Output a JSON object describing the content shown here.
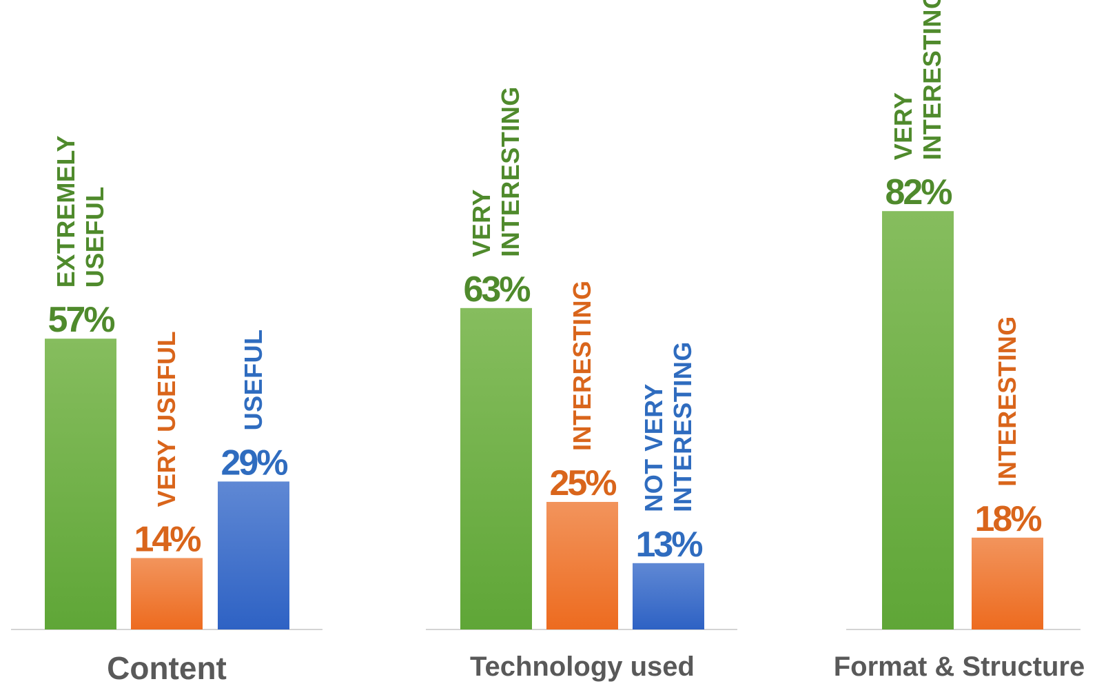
{
  "colors": {
    "green": "#5fa637",
    "green_light": "#86bd5e",
    "green_text": "#4f8a2c",
    "orange": "#ed6b1f",
    "orange_light": "#f2945c",
    "orange_text": "#d9651b",
    "blue": "#2e62c4",
    "blue_light": "#5f88d4",
    "blue_text": "#2f6cbf",
    "axis": "#d4d4d4",
    "title": "#595959"
  },
  "chart_data": [
    {
      "type": "bar",
      "title": "Content",
      "categories": [
        "EXTREMELY USEFUL",
        "VERY USEFUL",
        "USEFUL"
      ],
      "values": [
        57,
        14,
        29
      ],
      "value_labels": [
        "57%",
        "14%",
        "29%"
      ],
      "colors": [
        "green",
        "orange",
        "blue"
      ],
      "ylim": [
        0,
        100
      ],
      "grid": false,
      "legend": "none"
    },
    {
      "type": "bar",
      "title": "Technology used",
      "categories": [
        "VERY INTERESTING",
        "INTERESTING",
        "NOT VERY INTERESTING"
      ],
      "values": [
        63,
        25,
        13
      ],
      "value_labels": [
        "63%",
        "25%",
        "13%"
      ],
      "colors": [
        "green",
        "orange",
        "blue"
      ],
      "ylim": [
        0,
        100
      ],
      "grid": false,
      "legend": "none"
    },
    {
      "type": "bar",
      "title": "Format & Structure",
      "categories": [
        "VERY INTERESTING",
        "INTERESTING"
      ],
      "values": [
        82,
        18
      ],
      "value_labels": [
        "82%",
        "18%"
      ],
      "colors": [
        "green",
        "orange"
      ],
      "ylim": [
        0,
        100
      ],
      "grid": false,
      "legend": "none"
    }
  ]
}
